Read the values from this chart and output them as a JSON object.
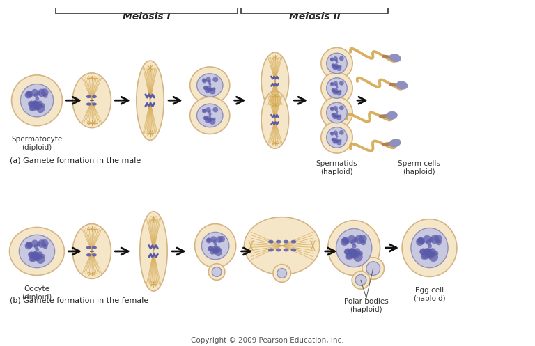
{
  "bg_color": "#ffffff",
  "cell_fill": "#f5e6c8",
  "cell_edge": "#d4b483",
  "nucleus_fill": "#c8c8e0",
  "nucleus_edge": "#9090b8",
  "chromosome_color": "#5a5aaa",
  "spindle_color": "#d4a850",
  "title_meiosis1": "Meiosis I",
  "title_meiosis2": "Meiosis II",
  "label_a": "(a) Gamete formation in the male",
  "label_b": "(b) Gamete formation in the female",
  "label_spermatocyte": "Spermatocyte\n(diploid)",
  "label_oocyte": "Oocyte\n(diploid)",
  "label_spermatids": "Spermatids\n(haploid)",
  "label_spermcells": "Sperm cells\n(haploid)",
  "label_polarbodies": "Polar bodies\n(haploid)",
  "label_eggcell": "Egg cell\n(haploid)",
  "copyright": "Copyright © 2009 Pearson Education, Inc.",
  "arrow_color": "#111111",
  "sperm_tail_color": "#d4a850",
  "sperm_head_fill": "#9090c0",
  "sperm_mid_color": "#b08050"
}
